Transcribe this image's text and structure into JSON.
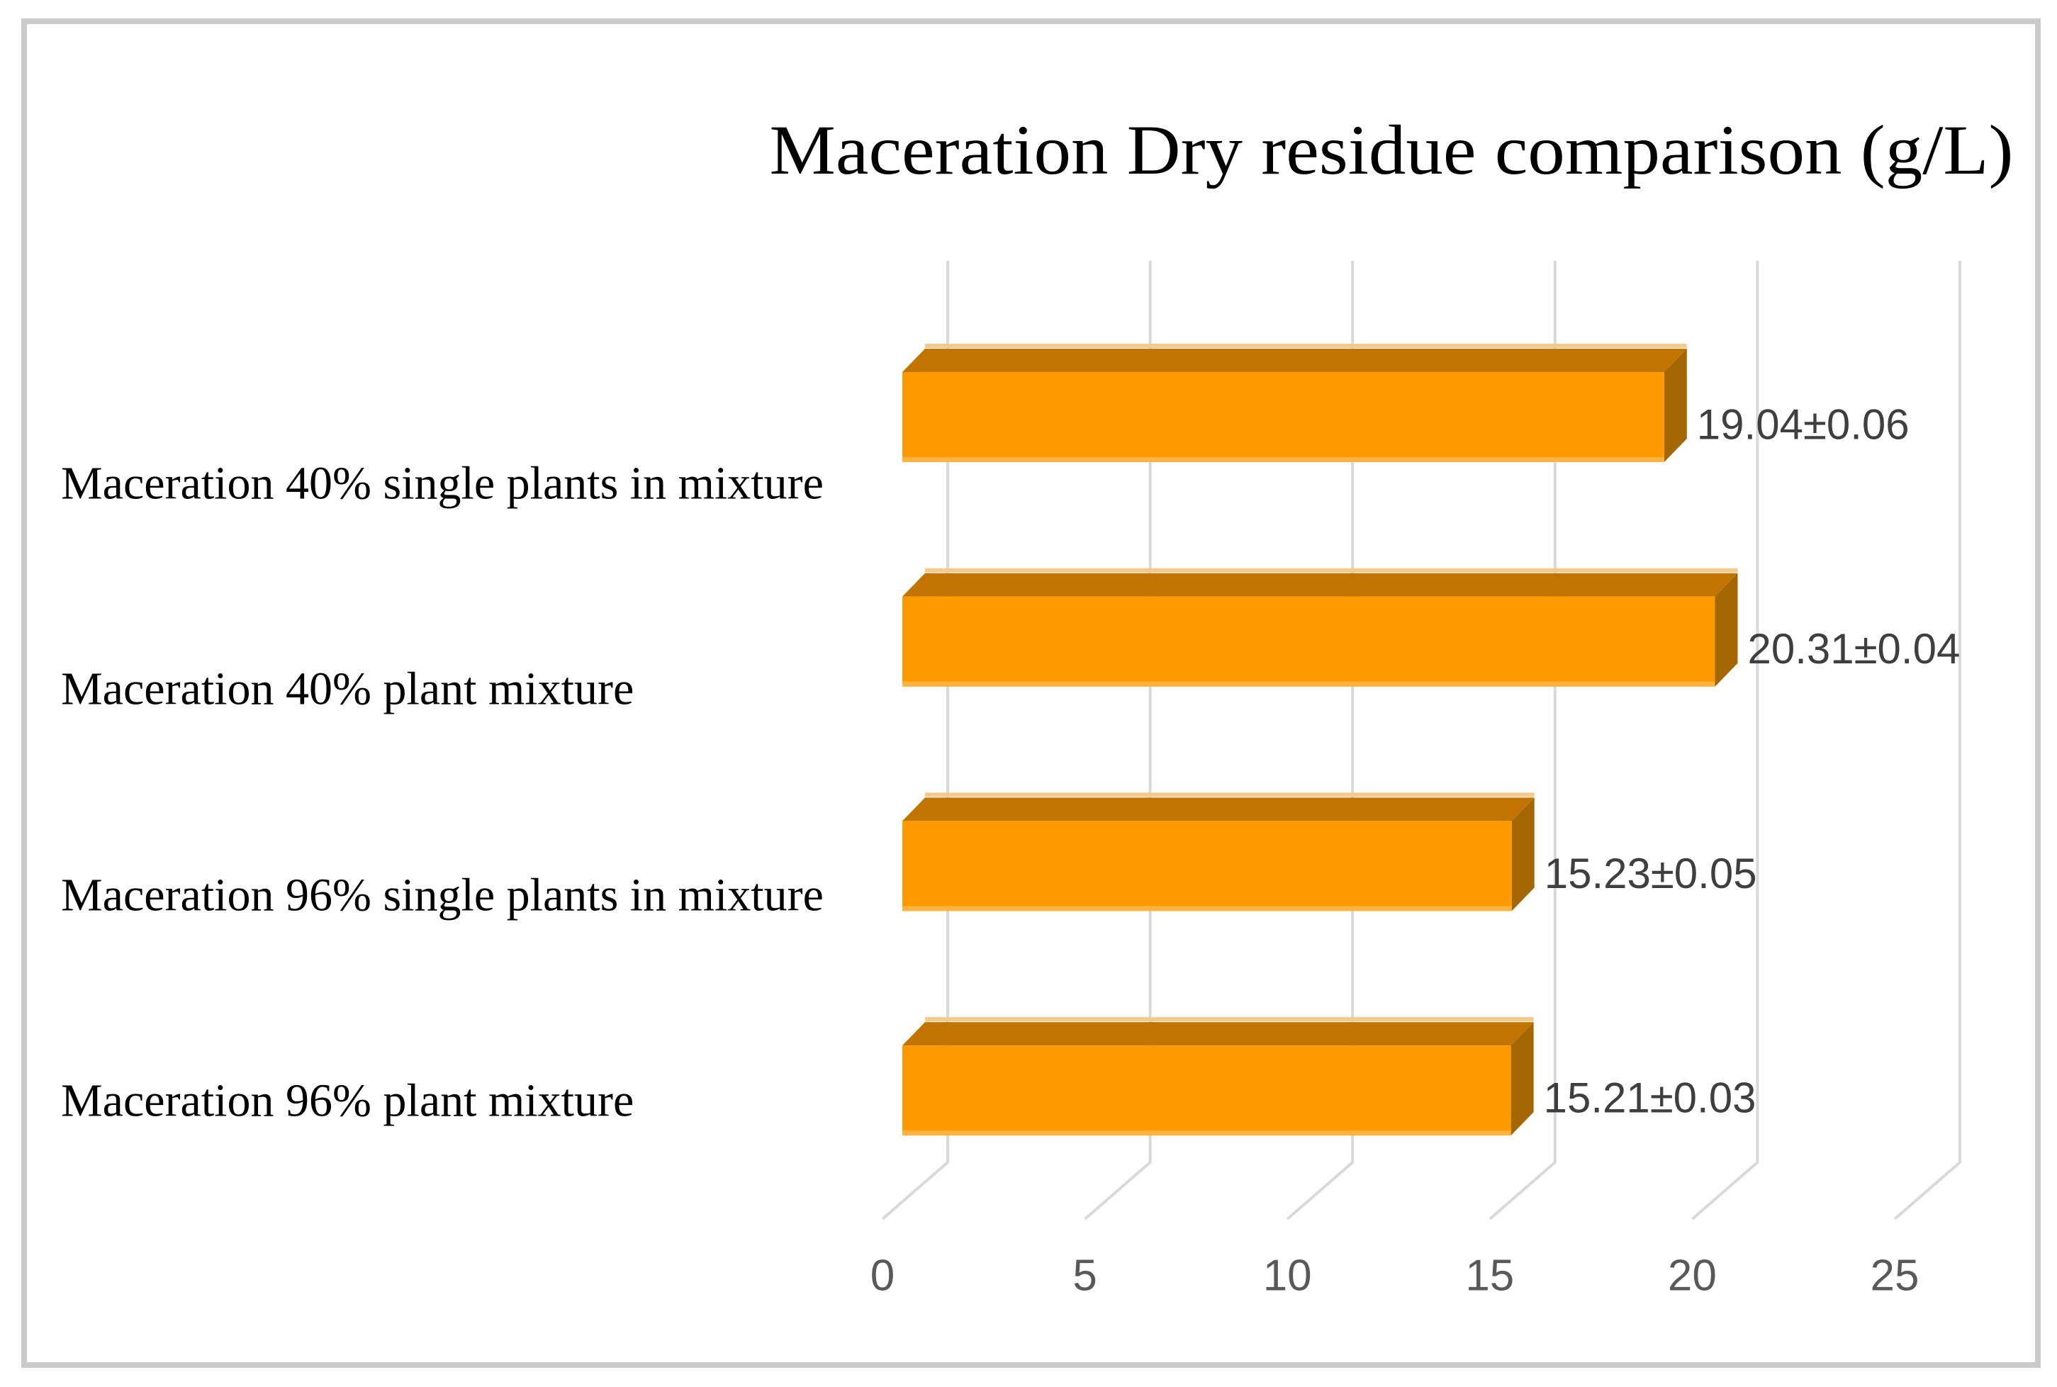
{
  "figure": {
    "background": "#FFFFFF",
    "border_color": "#CBCBCB"
  },
  "chart_data": {
    "type": "bar",
    "orientation": "horizontal",
    "style": "3d",
    "title": "Maceration Dry residue comparison (g/L)",
    "categories": [
      "Maceration 40% single plants in mixture",
      "Maceration 40% plant mixture",
      "Maceration 96% single plants in mixture",
      "Maceration 96% plant mixture"
    ],
    "values": [
      19.04,
      20.31,
      15.23,
      15.21
    ],
    "errors": [
      0.06,
      0.04,
      0.05,
      0.03
    ],
    "data_labels": [
      "19.04±0.06",
      "20.31±0.04",
      "15.23±0.05",
      "15.21±0.03"
    ],
    "x_ticks": [
      "0",
      "5",
      "10",
      "15",
      "20",
      "25"
    ],
    "xlim": [
      0,
      25
    ],
    "xlabel": "",
    "ylabel": "",
    "grid": true,
    "legend": false,
    "colors": {
      "bar_front": "#FF9900",
      "bar_top": "#C17500",
      "bar_side": "#A56703",
      "bar_top_highlight": "#F2CA8C",
      "bar_bottom_highlight": "#FFB23E",
      "gridline": "#D9D9D9",
      "tick_label": "#595959",
      "value_label": "#3F3F3F",
      "category_label": "#000000",
      "title": "#000000"
    }
  }
}
